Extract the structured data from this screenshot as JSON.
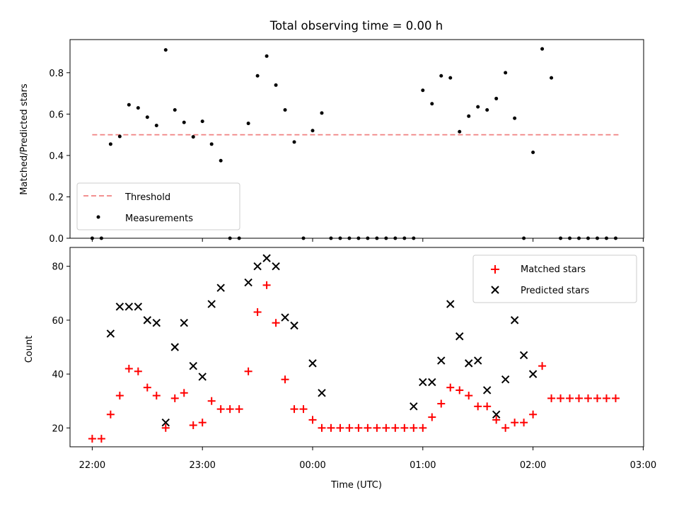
{
  "chart_data": [
    {
      "type": "scatter",
      "title": "Total observing time = 0.00 h",
      "xlabel": "",
      "ylabel": "Matched/Predicted stars",
      "xlim": [
        "21:56",
        "03:00"
      ],
      "ylim": [
        0.0,
        0.96
      ],
      "yticks": [
        0.0,
        0.2,
        0.4,
        0.6,
        0.8
      ],
      "ytick_labels": [
        "0.0",
        "0.2",
        "0.4",
        "0.6",
        "0.8"
      ],
      "legend": {
        "placement": "lower-left",
        "entries": [
          "Threshold",
          "Measurements"
        ]
      },
      "threshold": {
        "name": "Threshold",
        "value": 0.5,
        "x_start": "22:00",
        "x_end": "02:48",
        "color": "#f08080",
        "style": "dashed"
      },
      "series": [
        {
          "name": "Measurements",
          "marker": "dot",
          "color": "#000000",
          "x": [
            "22:00",
            "22:05",
            "22:10",
            "22:15",
            "22:20",
            "22:25",
            "22:30",
            "22:35",
            "22:40",
            "22:45",
            "22:50",
            "22:55",
            "23:00",
            "23:05",
            "23:10",
            "23:15",
            "23:20",
            "23:25",
            "23:30",
            "23:35",
            "23:40",
            "23:45",
            "23:50",
            "23:55",
            "00:00",
            "00:05",
            "00:10",
            "00:15",
            "00:20",
            "00:25",
            "00:30",
            "00:35",
            "00:40",
            "00:45",
            "00:50",
            "00:55",
            "01:00",
            "01:05",
            "01:10",
            "01:15",
            "01:20",
            "01:25",
            "01:30",
            "01:35",
            "01:40",
            "01:45",
            "01:50",
            "01:55",
            "02:00",
            "02:05",
            "02:10",
            "02:15",
            "02:20",
            "02:25",
            "02:30",
            "02:35",
            "02:40",
            "02:45"
          ],
          "y": [
            0.0,
            0.0,
            0.455,
            0.492,
            0.645,
            0.63,
            0.585,
            0.545,
            0.91,
            0.62,
            0.56,
            0.49,
            0.565,
            0.455,
            0.375,
            0.0,
            0.0,
            0.555,
            0.785,
            0.88,
            0.74,
            0.62,
            0.465,
            0.0,
            0.52,
            0.605,
            0.0,
            0.0,
            0.0,
            0.0,
            0.0,
            0.0,
            0.0,
            0.0,
            0.0,
            0.0,
            0.715,
            0.65,
            0.785,
            0.775,
            0.515,
            0.59,
            0.635,
            0.62,
            0.675,
            0.8,
            0.58,
            0.0,
            0.415,
            0.915,
            0.775,
            0.0,
            0.0,
            0.0,
            0.0,
            0.0,
            0.0,
            0.0
          ]
        }
      ]
    },
    {
      "type": "scatter",
      "title": "",
      "xlabel": "Time (UTC)",
      "ylabel": "Count",
      "xlim": [
        "21:56",
        "03:00"
      ],
      "ylim": [
        13,
        87
      ],
      "yticks": [
        20,
        40,
        60,
        80
      ],
      "ytick_labels": [
        "20",
        "40",
        "60",
        "80"
      ],
      "xtick_labels": [
        "22:00",
        "23:00",
        "00:00",
        "01:00",
        "02:00",
        "03:00"
      ],
      "legend": {
        "placement": "upper-right",
        "entries": [
          "Matched stars",
          "Predicted stars"
        ]
      },
      "series": [
        {
          "name": "Matched stars",
          "marker": "plus",
          "color": "#ff0000",
          "x": [
            "22:00",
            "22:05",
            "22:10",
            "22:15",
            "22:20",
            "22:25",
            "22:30",
            "22:35",
            "22:40",
            "22:45",
            "22:50",
            "22:55",
            "23:00",
            "23:05",
            "23:10",
            "23:15",
            "23:20",
            "23:25",
            "23:30",
            "23:35",
            "23:40",
            "23:45",
            "23:50",
            "23:55",
            "00:00",
            "00:05",
            "00:10",
            "00:15",
            "00:20",
            "00:25",
            "00:30",
            "00:35",
            "00:40",
            "00:45",
            "00:50",
            "00:55",
            "01:00",
            "01:05",
            "01:10",
            "01:15",
            "01:20",
            "01:25",
            "01:30",
            "01:35",
            "01:40",
            "01:45",
            "01:50",
            "01:55",
            "02:00",
            "02:05",
            "02:10",
            "02:15",
            "02:20",
            "02:25",
            "02:30",
            "02:35",
            "02:40",
            "02:45"
          ],
          "y": [
            16,
            16,
            25,
            32,
            42,
            41,
            35,
            32,
            20,
            31,
            33,
            21,
            22,
            30,
            27,
            27,
            27,
            41,
            63,
            73,
            59,
            38,
            27,
            27,
            23,
            20,
            20,
            20,
            20,
            20,
            20,
            20,
            20,
            20,
            20,
            20,
            20,
            24,
            29,
            35,
            34,
            32,
            28,
            28,
            23,
            20,
            22,
            22,
            25,
            43,
            31,
            31,
            31,
            31,
            31,
            31,
            31,
            31
          ]
        },
        {
          "name": "Predicted stars",
          "marker": "x",
          "color": "#000000",
          "x": [
            "22:10",
            "22:15",
            "22:20",
            "22:25",
            "22:30",
            "22:35",
            "22:40",
            "22:45",
            "22:50",
            "22:55",
            "23:00",
            "23:05",
            "23:10",
            "23:25",
            "23:30",
            "23:35",
            "23:40",
            "23:45",
            "23:50",
            "00:00",
            "00:05",
            "00:55",
            "01:00",
            "01:05",
            "01:10",
            "01:15",
            "01:20",
            "01:25",
            "01:30",
            "01:35",
            "01:40",
            "01:45",
            "01:50",
            "01:55",
            "02:00",
            "02:05"
          ],
          "y": [
            55,
            65,
            65,
            65,
            60,
            59,
            22,
            50,
            59,
            43,
            39,
            66,
            72,
            74,
            80,
            83,
            80,
            61,
            58,
            44,
            33,
            28,
            37,
            37,
            45,
            66,
            54,
            44,
            45,
            34,
            25,
            38,
            60,
            47,
            40,
            null
          ]
        }
      ]
    }
  ]
}
